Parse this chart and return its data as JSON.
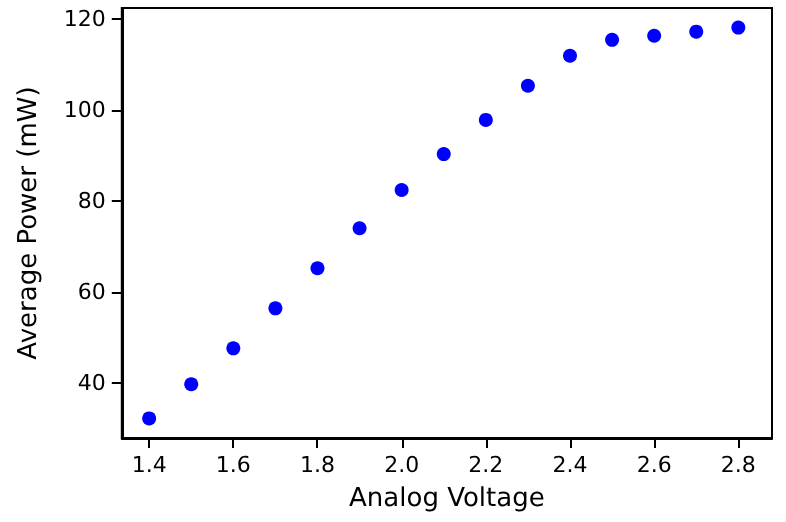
{
  "chart_data": {
    "type": "scatter",
    "xlabel": "Analog Voltage",
    "ylabel": "Average Power (mW)",
    "x": [
      1.4,
      1.5,
      1.6,
      1.7,
      1.8,
      1.9,
      2.0,
      2.1,
      2.2,
      2.3,
      2.4,
      2.5,
      2.6,
      2.7,
      2.8
    ],
    "series": [
      {
        "color": "#0000ff",
        "values": [
          32.3,
          39.8,
          47.7,
          56.5,
          65.3,
          74.1,
          82.5,
          90.4,
          97.9,
          105.4,
          112,
          115.5,
          116.4,
          117.3,
          118.2
        ]
      }
    ],
    "xlim": [
      1.335,
      2.88
    ],
    "xticks": [
      {
        "value": 1.4,
        "label": "1.4"
      },
      {
        "value": 1.6,
        "label": "1.6"
      },
      {
        "value": 1.8,
        "label": "1.8"
      },
      {
        "value": 2.0,
        "label": "2.0"
      },
      {
        "value": 2.2,
        "label": "2.2"
      },
      {
        "value": 2.4,
        "label": "2.4"
      },
      {
        "value": 2.6,
        "label": "2.6"
      },
      {
        "value": 2.8,
        "label": "2.8"
      }
    ],
    "ylim": [
      28,
      122.5
    ],
    "yticks": [
      40,
      60,
      80,
      100,
      120
    ],
    "grid": false,
    "marker": "circle"
  }
}
